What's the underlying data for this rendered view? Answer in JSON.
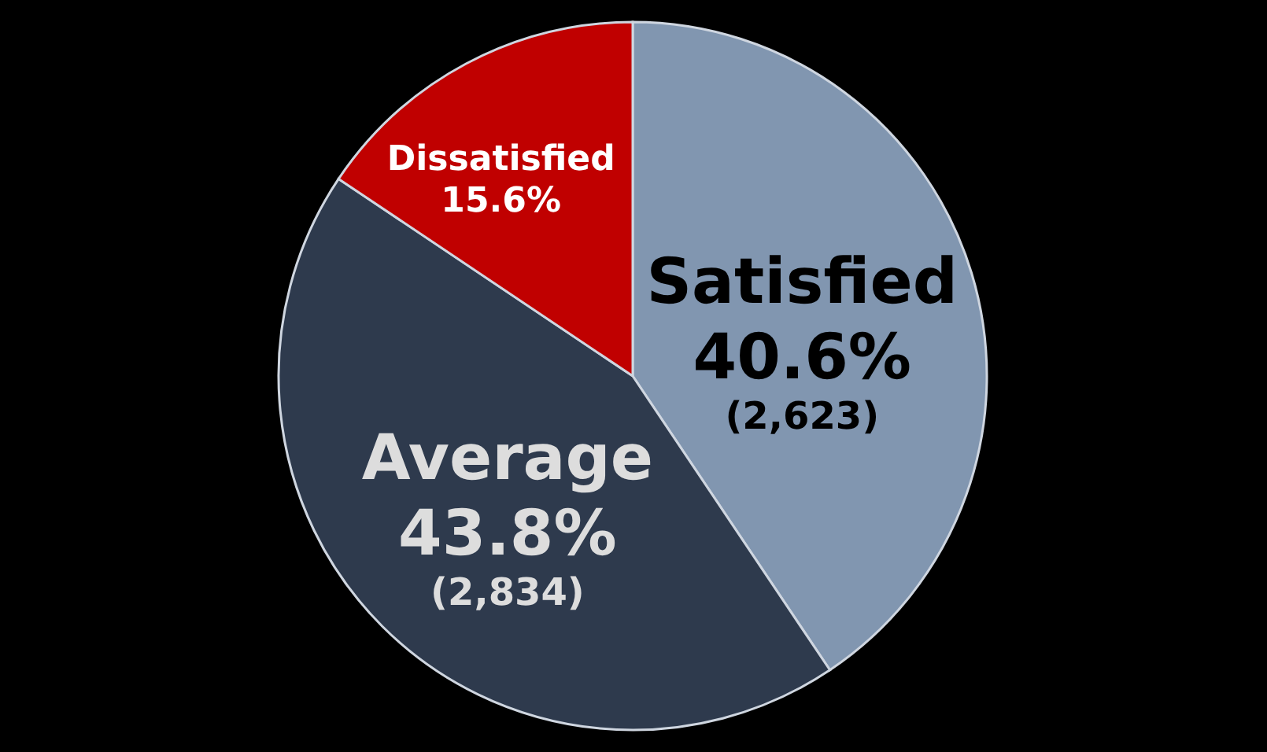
{
  "chart_data": {
    "type": "pie",
    "categories": [
      "Satisfied",
      "Average",
      "Dissatisfied"
    ],
    "values": [
      40.6,
      43.8,
      15.6
    ],
    "colors": [
      "#8196b0",
      "#2e3a4d",
      "#c00000"
    ],
    "value_labels": [
      "40.6%",
      "43.8%",
      "15.6%"
    ],
    "annotations": [
      {
        "text": "(2,623)",
        "x": "Satisfied"
      },
      {
        "text": "(2,834)",
        "x": "Average"
      }
    ]
  }
}
